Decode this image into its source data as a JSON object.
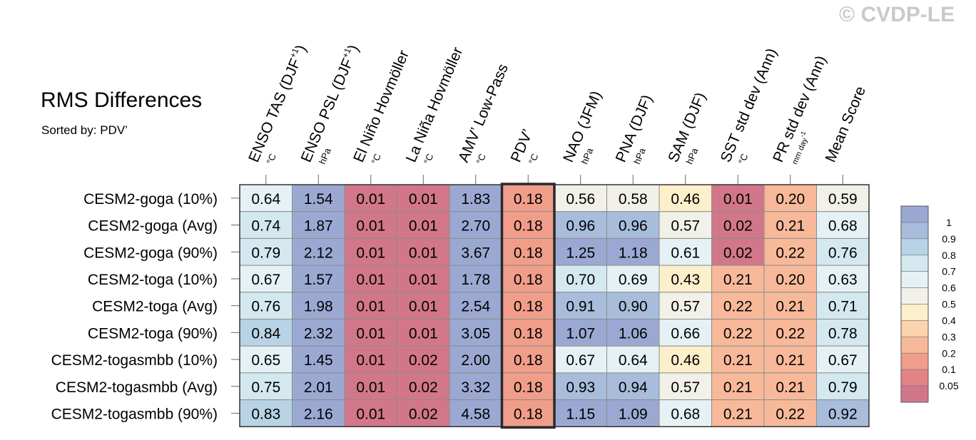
{
  "watermark": "© CVDP-LE",
  "chart_data": {
    "type": "heatmap",
    "title": "RMS Differences",
    "subtitle": "Sorted by: PDV’",
    "columns": [
      {
        "label": "ENSO TAS (DJF",
        "sup": "+1",
        "tail": ")",
        "unit": "°C"
      },
      {
        "label": "ENSO PSL (DJF",
        "sup": "+1",
        "tail": ")",
        "unit": "hPa"
      },
      {
        "label": "El Niño Hovmöller",
        "sup": "",
        "tail": "",
        "unit": "°C"
      },
      {
        "label": "La Niña Hovmöller",
        "sup": "",
        "tail": "",
        "unit": "°C"
      },
      {
        "label": "AMV’ Low-Pass",
        "sup": "",
        "tail": "",
        "unit": "°C"
      },
      {
        "label": "PDV’",
        "sup": "",
        "tail": "",
        "unit": "°C"
      },
      {
        "label": "NAO (JFM)",
        "sup": "",
        "tail": "",
        "unit": "hPa"
      },
      {
        "label": "PNA (DJF)",
        "sup": "",
        "tail": "",
        "unit": "hPa"
      },
      {
        "label": "SAM (DJF)",
        "sup": "",
        "tail": "",
        "unit": "hPa"
      },
      {
        "label": "SST std dev (Ann)",
        "sup": "",
        "tail": "",
        "unit": "°C"
      },
      {
        "label": "PR std dev (Ann)",
        "sup": "",
        "tail": "",
        "unit": "mm day",
        "unit_sup": "-1"
      },
      {
        "label": "Mean Score",
        "sup": "",
        "tail": "",
        "unit": ""
      }
    ],
    "rows": [
      "CESM2-goga (10%)",
      "CESM2-goga (Avg)",
      "CESM2-goga (90%)",
      "CESM2-toga (10%)",
      "CESM2-toga (Avg)",
      "CESM2-toga (90%)",
      "CESM2-togasmbb (10%)",
      "CESM2-togasmbb (Avg)",
      "CESM2-togasmbb (90%)"
    ],
    "values": [
      [
        "0.64",
        "1.54",
        "0.01",
        "0.01",
        "1.83",
        "0.18",
        "0.56",
        "0.58",
        "0.46",
        "0.01",
        "0.20",
        "0.59"
      ],
      [
        "0.74",
        "1.87",
        "0.01",
        "0.01",
        "2.70",
        "0.18",
        "0.96",
        "0.96",
        "0.57",
        "0.02",
        "0.21",
        "0.68"
      ],
      [
        "0.79",
        "2.12",
        "0.01",
        "0.01",
        "3.67",
        "0.18",
        "1.25",
        "1.18",
        "0.61",
        "0.02",
        "0.22",
        "0.76"
      ],
      [
        "0.67",
        "1.57",
        "0.01",
        "0.01",
        "1.78",
        "0.18",
        "0.70",
        "0.69",
        "0.43",
        "0.21",
        "0.20",
        "0.63"
      ],
      [
        "0.76",
        "1.98",
        "0.01",
        "0.01",
        "2.54",
        "0.18",
        "0.91",
        "0.90",
        "0.57",
        "0.22",
        "0.21",
        "0.71"
      ],
      [
        "0.84",
        "2.32",
        "0.01",
        "0.01",
        "3.05",
        "0.18",
        "1.07",
        "1.06",
        "0.66",
        "0.22",
        "0.22",
        "0.78"
      ],
      [
        "0.65",
        "1.45",
        "0.01",
        "0.02",
        "2.00",
        "0.18",
        "0.67",
        "0.64",
        "0.46",
        "0.21",
        "0.21",
        "0.67"
      ],
      [
        "0.75",
        "2.01",
        "0.01",
        "0.02",
        "3.32",
        "0.18",
        "0.93",
        "0.94",
        "0.57",
        "0.21",
        "0.21",
        "0.79"
      ],
      [
        "0.83",
        "2.16",
        "0.01",
        "0.02",
        "4.58",
        "0.18",
        "1.15",
        "1.09",
        "0.68",
        "0.21",
        "0.22",
        "0.92"
      ]
    ],
    "highlight_column": 5,
    "colorbar": {
      "levels": [
        "1",
        "0.9",
        "0.8",
        "0.7",
        "0.6",
        "0.5",
        "0.4",
        "0.3",
        "0.2",
        "0.1",
        "0.05"
      ],
      "colors": [
        "#9ba9d2",
        "#a8bcdc",
        "#b8d3e5",
        "#d4e8f0",
        "#e6f1f5",
        "#f2f1e9",
        "#fcefcc",
        "#fbd3ae",
        "#f7b99a",
        "#f09e8a",
        "#e38387",
        "#d2778a"
      ]
    }
  }
}
